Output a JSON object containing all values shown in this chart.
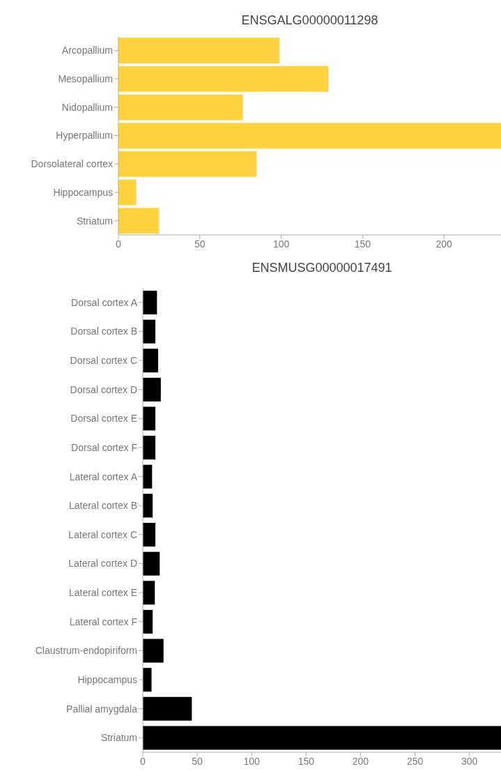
{
  "chart_data": [
    {
      "type": "bar",
      "orientation": "horizontal",
      "title": "ENSGALG00000011298",
      "categories": [
        "Arcopallium",
        "Mesopallium",
        "Nidopallium",
        "Hyperpallium",
        "Dorsolateral cortex",
        "Hippocampus",
        "Striatum"
      ],
      "values": [
        99,
        129,
        76.5,
        235,
        85,
        11,
        25
      ],
      "color": "#fed33f",
      "xlim": [
        0,
        235
      ],
      "xticks": [
        0,
        50,
        100,
        150,
        200
      ],
      "grid": false,
      "legend": false
    },
    {
      "type": "bar",
      "orientation": "horizontal",
      "title": "ENSMUSG00000017491",
      "categories": [
        "Dorsal cortex A",
        "Dorsal cortex B",
        "Dorsal cortex C",
        "Dorsal cortex D",
        "Dorsal cortex E",
        "Dorsal cortex F",
        "Lateral cortex A",
        "Lateral cortex B",
        "Lateral cortex C",
        "Lateral cortex D",
        "Lateral cortex E",
        "Lateral cortex F",
        "Claustrum-endopiriform",
        "Hippocampus",
        "Pallial amygdala",
        "Striatum"
      ],
      "values": [
        13,
        11.5,
        14,
        16.5,
        11.5,
        11.5,
        8.5,
        9,
        11.5,
        15.5,
        11,
        9,
        19,
        8,
        45,
        329
      ],
      "color": "#000000",
      "xlim": [
        0,
        329
      ],
      "xticks": [
        0,
        50,
        100,
        150,
        200,
        250,
        300
      ],
      "grid": false,
      "legend": false
    }
  ]
}
